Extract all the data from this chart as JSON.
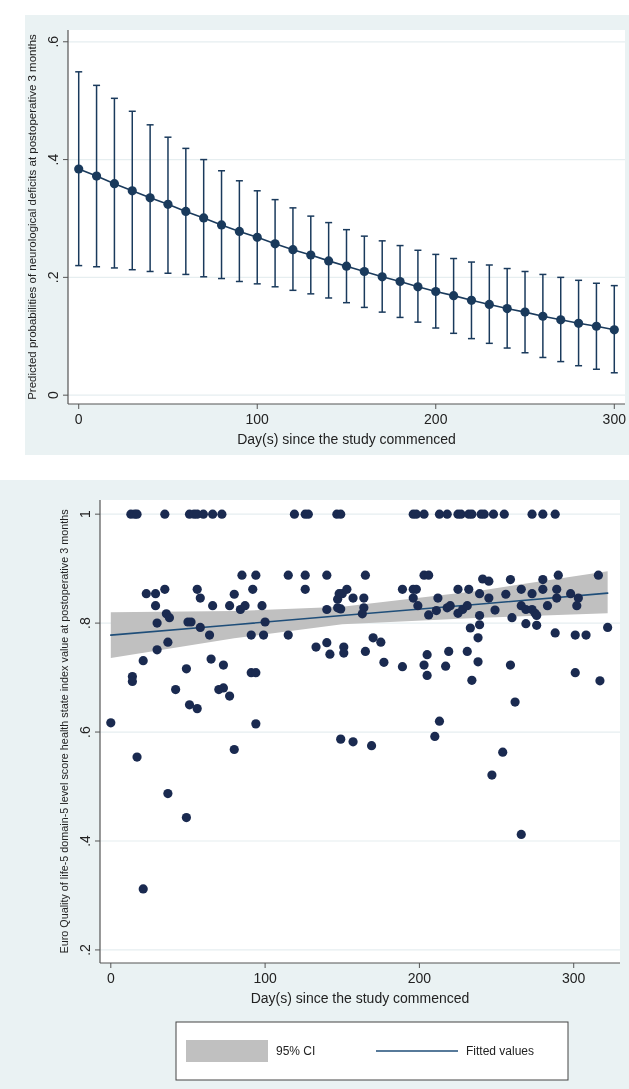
{
  "chart_data": [
    {
      "type": "line",
      "xlabel": "Day(s) since the study commenced",
      "ylabel": "Predicted probabilities of neurological deficits at postoperative 3 months",
      "xlim": [
        -6,
        306
      ],
      "ylim": [
        -0.015,
        0.62
      ],
      "xticks": [
        0,
        100,
        200,
        300
      ],
      "yticks": [
        0,
        {
          "value": 0.2,
          "label": ".2"
        },
        {
          "value": 0.4,
          "label": ".4"
        },
        {
          "value": 0.6,
          "label": ".6"
        }
      ],
      "grid": "y",
      "x": [
        0,
        10,
        20,
        30,
        40,
        50,
        60,
        70,
        80,
        90,
        100,
        110,
        120,
        130,
        140,
        150,
        160,
        170,
        180,
        190,
        200,
        210,
        220,
        230,
        240,
        250,
        260,
        270,
        280,
        290,
        300
      ],
      "series": [
        {
          "color": "#1a3a5c",
          "marker": "circle",
          "values": [
            0.384,
            0.372,
            0.359,
            0.347,
            0.335,
            0.324,
            0.312,
            0.301,
            0.289,
            0.278,
            0.268,
            0.257,
            0.247,
            0.238,
            0.228,
            0.219,
            0.21,
            0.201,
            0.193,
            0.184,
            0.176,
            0.169,
            0.161,
            0.154,
            0.147,
            0.141,
            0.134,
            0.128,
            0.122,
            0.117,
            0.111
          ],
          "errors": [
            [
              0.22,
              0.549
            ],
            [
              0.218,
              0.526
            ],
            [
              0.216,
              0.504
            ],
            [
              0.213,
              0.482
            ],
            [
              0.21,
              0.459
            ],
            [
              0.207,
              0.438
            ],
            [
              0.205,
              0.419
            ],
            [
              0.201,
              0.4
            ],
            [
              0.198,
              0.381
            ],
            [
              0.193,
              0.364
            ],
            [
              0.189,
              0.347
            ],
            [
              0.184,
              0.332
            ],
            [
              0.178,
              0.318
            ],
            [
              0.172,
              0.304
            ],
            [
              0.165,
              0.293
            ],
            [
              0.157,
              0.281
            ],
            [
              0.149,
              0.27
            ],
            [
              0.141,
              0.262
            ],
            [
              0.132,
              0.254
            ],
            [
              0.124,
              0.246
            ],
            [
              0.114,
              0.239
            ],
            [
              0.105,
              0.232
            ],
            [
              0.096,
              0.226
            ],
            [
              0.088,
              0.221
            ],
            [
              0.08,
              0.215
            ],
            [
              0.072,
              0.21
            ],
            [
              0.064,
              0.205
            ],
            [
              0.057,
              0.2
            ],
            [
              0.05,
              0.195
            ],
            [
              0.044,
              0.19
            ],
            [
              0.038,
              0.186
            ]
          ]
        }
      ]
    },
    {
      "type": "scatter",
      "xlabel": "Day(s) since the study commenced",
      "ylabel": "Euro Quality of life-5 domain-5 level score health state index value at postoperative 3 months",
      "xlim": [
        -7,
        330
      ],
      "ylim": [
        0.176,
        1.026
      ],
      "xticks": [
        0,
        100,
        200,
        300
      ],
      "yticks": [
        {
          "value": 0.2,
          "label": ".2"
        },
        {
          "value": 0.4,
          "label": ".4"
        },
        {
          "value": 0.6,
          "label": ".6"
        },
        {
          "value": 0.8,
          "label": ".8"
        },
        1
      ],
      "grid": "y",
      "legend": "bottom",
      "annotations": [
        "95% CI"
      ],
      "series": [
        {
          "type": "line",
          "name": "Fitted values",
          "color": "#1f4e79",
          "x": [
            0,
            80,
            150,
            240,
            322
          ],
          "values": [
            0.778,
            0.797,
            0.814,
            0.835,
            0.855
          ],
          "lower": [
            0.736,
            0.772,
            0.798,
            0.81,
            0.818
          ],
          "upper": [
            0.82,
            0.822,
            0.83,
            0.86,
            0.895
          ]
        },
        {
          "type": "scatter",
          "marker": "circle",
          "color": "#1a2a50",
          "x": [
            13,
            15.5,
            17,
            35,
            51,
            54,
            56,
            60,
            66,
            72,
            119,
            126,
            128,
            146.5,
            149,
            0,
            14,
            14,
            17,
            21,
            21,
            23,
            29,
            29,
            30,
            30,
            35,
            36,
            38,
            37,
            37,
            42,
            49,
            49,
            50,
            52,
            51,
            56,
            56,
            58,
            58,
            64,
            65,
            66,
            70,
            73,
            73,
            77,
            77,
            80,
            80,
            84,
            87,
            85,
            91,
            91,
            94,
            92,
            94,
            94,
            98,
            99,
            100,
            115,
            115,
            126,
            126,
            133,
            140,
            140,
            140,
            142,
            147,
            148,
            150,
            149,
            147,
            151,
            151,
            149,
            153,
            196,
            198,
            203,
            213,
            218,
            225,
            227,
            232,
            234,
            240,
            242,
            248,
            255,
            273,
            280,
            288,
            157,
            157,
            169,
            164,
            164,
            163,
            165,
            165,
            170,
            175,
            177,
            189,
            189,
            196,
            198,
            196,
            199,
            203,
            206,
            203,
            205,
            205,
            206,
            210,
            213,
            211,
            212,
            217,
            219,
            218,
            220,
            225,
            228,
            231,
            225,
            232,
            231,
            233,
            234,
            238,
            239,
            239,
            238,
            239,
            241,
            245,
            245,
            249,
            247,
            254,
            256,
            259,
            260,
            259,
            262,
            266,
            266,
            266,
            269,
            269,
            273,
            273,
            275,
            276,
            276,
            280,
            280,
            283,
            288,
            289,
            289,
            290,
            298,
            301,
            301,
            303,
            302,
            308,
            316,
            317,
            322
          ],
          "values": [
            1,
            1,
            1,
            1,
            1,
            1,
            1,
            1,
            1,
            1,
            1,
            1,
            1,
            1,
            1,
            0.617,
            0.702,
            0.693,
            0.554,
            0.731,
            0.312,
            0.854,
            0.854,
            0.832,
            0.8,
            0.751,
            0.862,
            0.817,
            0.81,
            0.765,
            0.487,
            0.678,
            0.716,
            0.443,
            0.802,
            0.802,
            0.65,
            0.643,
            0.862,
            0.846,
            0.792,
            0.778,
            0.734,
            0.832,
            0.678,
            0.681,
            0.723,
            0.666,
            0.832,
            0.853,
            0.568,
            0.825,
            0.832,
            0.888,
            0.778,
            0.709,
            0.709,
            0.862,
            0.888,
            0.615,
            0.832,
            0.778,
            0.802,
            0.888,
            0.778,
            0.888,
            0.862,
            0.756,
            0.888,
            0.825,
            0.764,
            0.743,
            0.844,
            0.854,
            0.854,
            0.826,
            0.828,
            0.756,
            0.745,
            0.587,
            0.862,
            1,
            1,
            1,
            1,
            1,
            1,
            1,
            1,
            1,
            1,
            1,
            1,
            1,
            1,
            1,
            1,
            0.846,
            0.582,
            0.575,
            0.846,
            0.828,
            0.817,
            0.888,
            0.748,
            0.773,
            0.765,
            0.728,
            0.862,
            0.72,
            0.862,
            0.862,
            0.846,
            0.832,
            0.888,
            0.888,
            0.723,
            0.742,
            0.704,
            0.815,
            0.592,
            0.62,
            0.823,
            0.846,
            0.721,
            0.748,
            0.828,
            0.832,
            0.818,
            0.825,
            0.832,
            0.862,
            0.862,
            0.748,
            0.791,
            0.695,
            0.773,
            0.797,
            0.814,
            0.729,
            0.854,
            0.881,
            0.877,
            0.846,
            0.824,
            0.521,
            0.563,
            0.853,
            0.88,
            0.81,
            0.723,
            0.655,
            0.412,
            0.862,
            0.832,
            0.825,
            0.799,
            0.854,
            0.825,
            0.818,
            0.814,
            0.796,
            0.88,
            0.862,
            0.832,
            0.782,
            0.862,
            0.846,
            0.888,
            0.854,
            0.778,
            0.709,
            0.846,
            0.832,
            0.778,
            0.888,
            0.694,
            0.792
          ]
        }
      ]
    }
  ]
}
